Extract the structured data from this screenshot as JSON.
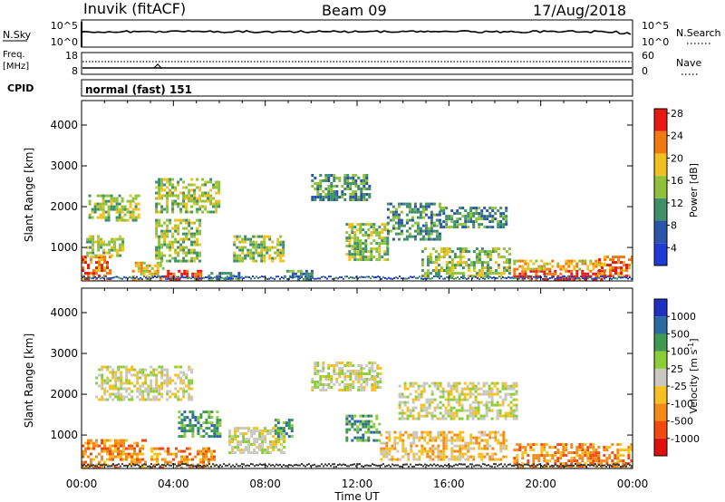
{
  "header": {
    "station": "Inuvik (fitACF)",
    "beam": "Beam 09",
    "date": "17/Aug/2018"
  },
  "top_panels": {
    "nsky_label": "N.Sky",
    "nsearch_label": "N.Search",
    "nsky_ticks": [
      "10^5",
      "10^0"
    ],
    "nsearch_ticks": [
      "10^5",
      "10^0"
    ],
    "freq_label": "Freq.",
    "freq_unit": "[MHz]",
    "freq_ticks": [
      "18",
      "8"
    ],
    "nave_label": "Nave",
    "nave_ticks": [
      "60",
      "0"
    ],
    "cpid_label": "CPID",
    "cpid_value": "normal (fast) 151"
  },
  "colors": {
    "power": [
      "#1f3bd6",
      "#2b56a8",
      "#3f8f6a",
      "#8fc23a",
      "#f0c020",
      "#f07a10",
      "#e61a10"
    ],
    "velocity": [
      "#e01010",
      "#f04a10",
      "#f58a18",
      "#f6c020",
      "#c8c8c0",
      "#8ccd38",
      "#3e9a50",
      "#2a6aa0",
      "#2030c0"
    ],
    "ground": "#3a3a3a"
  },
  "chart_data": [
    {
      "type": "heatmap",
      "name": "power",
      "ylabel": "Slant Range [km]",
      "xlabel": "Time UT",
      "x_ticks": [
        "00:00",
        "04:00",
        "08:00",
        "12:00",
        "16:00",
        "20:00",
        "00:00"
      ],
      "y_ticks": [
        1000,
        2000,
        3000,
        4000
      ],
      "ylim": [
        180,
        4600
      ],
      "xlim_hours": [
        0,
        24
      ],
      "colorbar_label": "Power [dB]",
      "colorbar_ticks": [
        4,
        8,
        12,
        16,
        20,
        24,
        28
      ],
      "regions": [
        {
          "t": [
            0.0,
            1.3
          ],
          "r": [
            200,
            800
          ],
          "level": 5
        },
        {
          "t": [
            0.2,
            1.8
          ],
          "r": [
            800,
            1300
          ],
          "level": 3
        },
        {
          "t": [
            0.3,
            2.5
          ],
          "r": [
            1700,
            2300
          ],
          "level": 3
        },
        {
          "t": [
            2.2,
            3.6
          ],
          "r": [
            180,
            650
          ],
          "level": 4
        },
        {
          "t": [
            3.6,
            5.2
          ],
          "r": [
            180,
            450
          ],
          "level": 6
        },
        {
          "t": [
            3.2,
            5.2
          ],
          "r": [
            650,
            1700
          ],
          "level": 3
        },
        {
          "t": [
            3.2,
            6.0
          ],
          "r": [
            1900,
            2700
          ],
          "level": 3
        },
        {
          "t": [
            5.5,
            7.0
          ],
          "r": [
            180,
            400
          ],
          "level": 2
        },
        {
          "t": [
            6.6,
            8.8
          ],
          "r": [
            650,
            1300
          ],
          "level": 3
        },
        {
          "t": [
            8.8,
            10.0
          ],
          "r": [
            180,
            450
          ],
          "level": 2
        },
        {
          "t": [
            10.0,
            12.5
          ],
          "r": [
            2200,
            2800
          ],
          "level": 2
        },
        {
          "t": [
            11.5,
            13.3
          ],
          "r": [
            700,
            1600
          ],
          "level": 3
        },
        {
          "t": [
            13.3,
            15.6
          ],
          "r": [
            1200,
            2100
          ],
          "level": 2
        },
        {
          "t": [
            15.6,
            18.5
          ],
          "r": [
            1500,
            2000
          ],
          "level": 2
        },
        {
          "t": [
            14.8,
            18.6
          ],
          "r": [
            300,
            1000
          ],
          "level": 3
        },
        {
          "t": [
            18.8,
            22.8
          ],
          "r": [
            240,
            450
          ],
          "level": 6
        },
        {
          "t": [
            18.8,
            22.8
          ],
          "r": [
            450,
            700
          ],
          "level": 4
        },
        {
          "t": [
            22.5,
            24.0
          ],
          "r": [
            300,
            800
          ],
          "level": 5
        }
      ]
    },
    {
      "type": "heatmap",
      "name": "velocity",
      "ylabel": "Slant Range [km]",
      "xlabel": "Time UT",
      "x_ticks": [
        "00:00",
        "04:00",
        "08:00",
        "12:00",
        "16:00",
        "20:00",
        "00:00"
      ],
      "y_ticks": [
        1000,
        2000,
        3000,
        4000
      ],
      "ylim": [
        180,
        4600
      ],
      "xlim_hours": [
        0,
        24
      ],
      "colorbar_label": "Velocity [m s^-1]",
      "colorbar_ticks": [
        "1000",
        "500",
        "100",
        "25",
        "-25",
        "-100",
        "-500",
        "-1000"
      ],
      "regions": [
        {
          "t": [
            0.0,
            2.8
          ],
          "r": [
            200,
            900
          ],
          "level": 2
        },
        {
          "t": [
            0.6,
            4.8
          ],
          "r": [
            1900,
            2700
          ],
          "level": 4
        },
        {
          "t": [
            3.0,
            5.8
          ],
          "r": [
            200,
            700
          ],
          "level": 2
        },
        {
          "t": [
            4.2,
            6.0
          ],
          "r": [
            1000,
            1600
          ],
          "level": 6
        },
        {
          "t": [
            6.4,
            8.8
          ],
          "r": [
            600,
            1200
          ],
          "level": 4
        },
        {
          "t": [
            8.4,
            9.2
          ],
          "r": [
            1000,
            1400
          ],
          "level": 6
        },
        {
          "t": [
            10.0,
            13.0
          ],
          "r": [
            2100,
            2800
          ],
          "level": 4
        },
        {
          "t": [
            11.5,
            13.0
          ],
          "r": [
            900,
            1500
          ],
          "level": 6
        },
        {
          "t": [
            13.8,
            19.0
          ],
          "r": [
            1400,
            2300
          ],
          "level": 4
        },
        {
          "t": [
            13.0,
            18.5
          ],
          "r": [
            400,
            1100
          ],
          "level": 3
        },
        {
          "t": [
            18.8,
            24.0
          ],
          "r": [
            200,
            800
          ],
          "level": 2
        }
      ]
    }
  ]
}
